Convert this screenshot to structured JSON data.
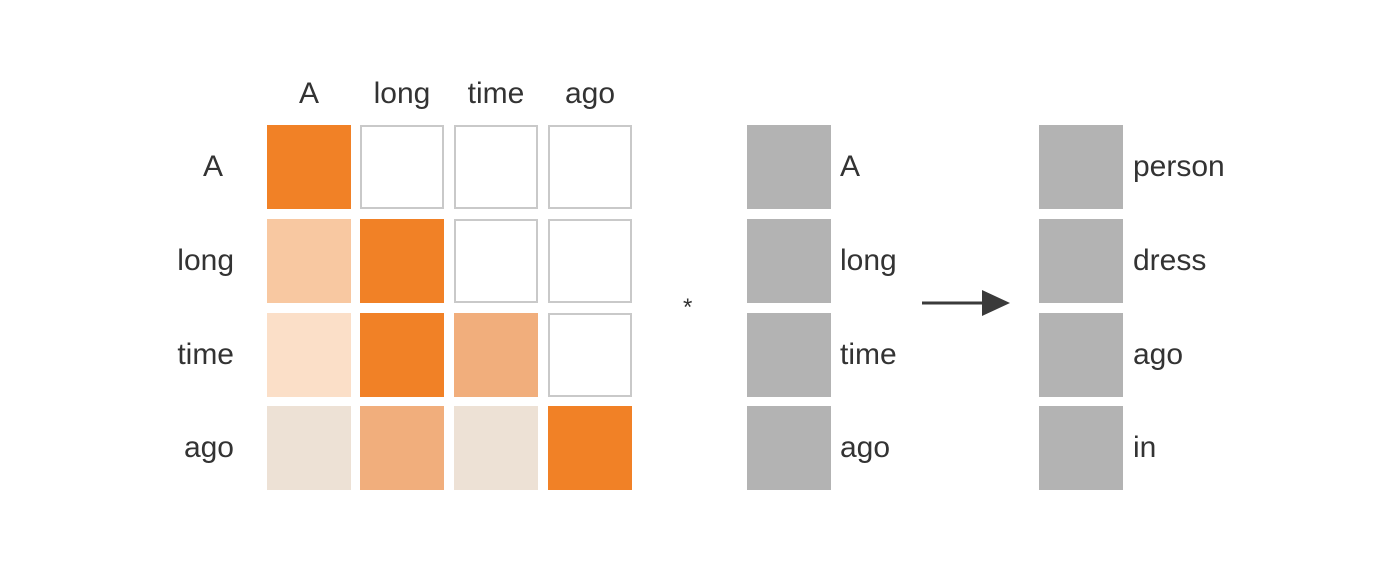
{
  "attention_matrix": {
    "column_tokens": [
      "A",
      "long",
      "time",
      "ago"
    ],
    "row_tokens": [
      "A",
      "long",
      "time",
      "ago"
    ],
    "cell_colors": [
      [
        "#f18126",
        null,
        null,
        null
      ],
      [
        "#f8c8a1",
        "#f18126",
        null,
        null
      ],
      [
        "#fbdfc8",
        "#f18126",
        "#f1ae7c",
        null
      ],
      [
        "#ede1d5",
        "#f1ae7c",
        "#ede1d5",
        "#f18126"
      ]
    ]
  },
  "operator": "*",
  "input_vector": {
    "tokens": [
      "A",
      "long",
      "time",
      "ago"
    ],
    "color": "#b3b3b3"
  },
  "output_vector": {
    "tokens": [
      "person",
      "dress",
      "ago",
      "in"
    ],
    "color": "#b3b3b3"
  },
  "colors": {
    "empty_cell_border": "#c9c9c9",
    "arrow": "#3a3a3a",
    "text": "#333333"
  }
}
